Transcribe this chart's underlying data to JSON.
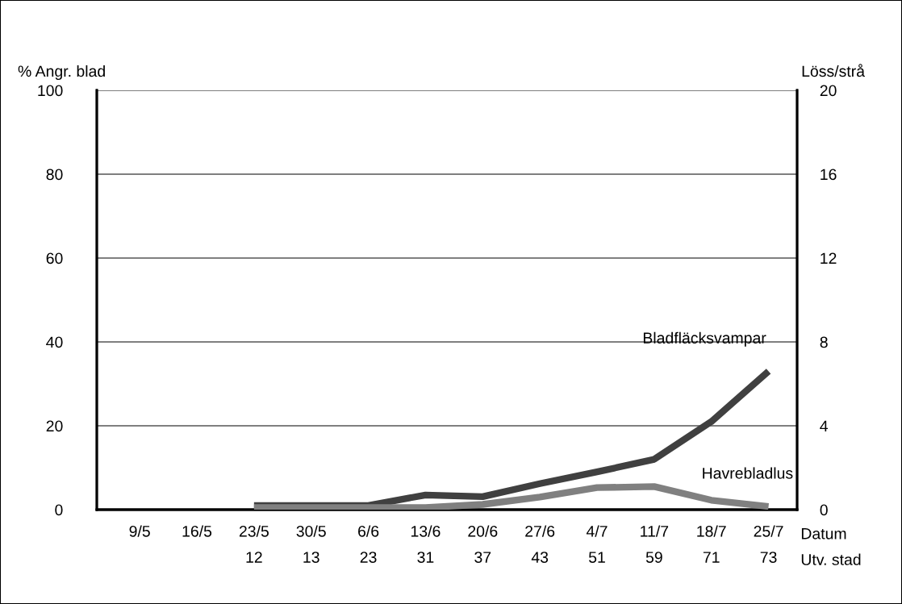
{
  "chart_data": {
    "type": "line",
    "ylabel": "% Angr. blad",
    "y2label": "Löss/strå",
    "xlabel": "Datum\nUtv. stad",
    "categories": [
      "9/5\n ",
      "16/5\n ",
      "23/5\n12",
      "30/5\n13",
      "6/6\n23",
      "13/6\n31",
      "20/6\n37",
      "27/6\n43",
      "4/7\n51",
      "11/7\n59",
      "18/7\n71",
      "25/7\n73"
    ],
    "series": [
      {
        "name": "Bladfläcksvampar",
        "color": "#404040",
        "values": [
          null,
          null,
          1,
          1,
          1,
          3.5,
          3.1,
          6.2,
          9,
          12,
          21,
          33
        ]
      },
      {
        "name": "Havrebladlus",
        "color": "#808080",
        "axis": "y2",
        "values": [
          null,
          null,
          0.1,
          0.1,
          0.1,
          0.1,
          0.25,
          0.6,
          1.05,
          1.1,
          0.45,
          0.15
        ]
      }
    ],
    "ylim": [
      0,
      100
    ],
    "yticks": [
      0,
      20,
      40,
      60,
      80,
      100
    ],
    "y2lim": [
      0,
      20
    ],
    "y2ticks": [
      0,
      4,
      8,
      12,
      16,
      20
    ],
    "grid": "y",
    "legend": false,
    "marker": "none",
    "line_style": "solid"
  }
}
